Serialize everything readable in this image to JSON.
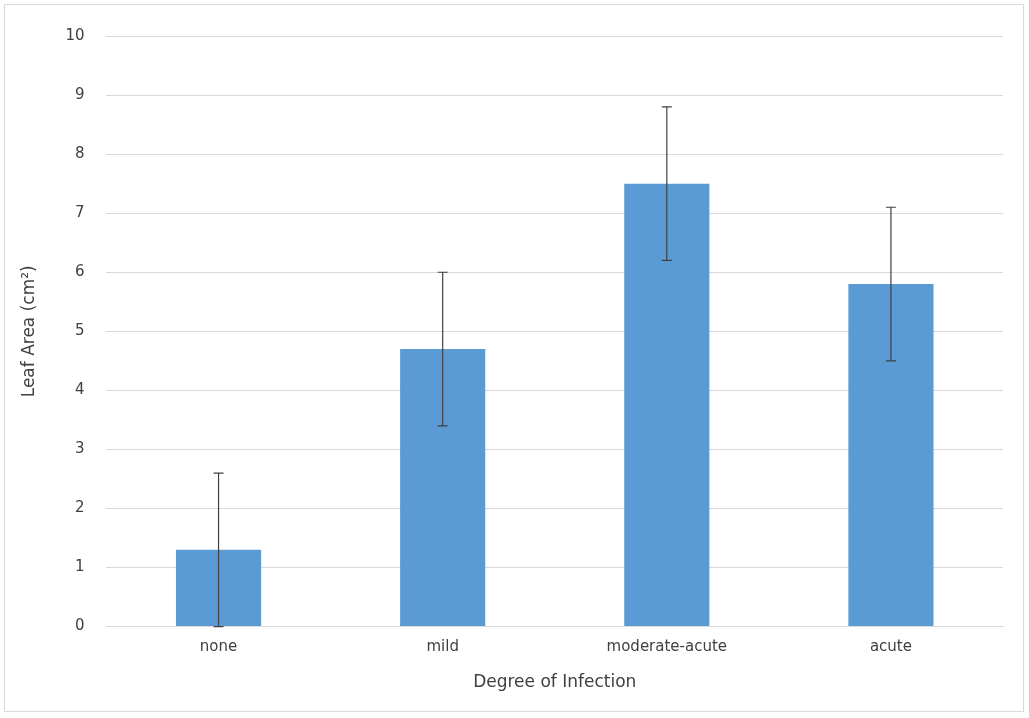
{
  "chart_data": {
    "type": "bar",
    "xlabel": "Degree of Infection",
    "ylabel": "Leaf Area (cm²)",
    "categories": [
      "none",
      "mild",
      "moderate-acute",
      "acute"
    ],
    "values": [
      1.3,
      4.7,
      7.5,
      5.8
    ],
    "errors": [
      1.3,
      1.3,
      1.3,
      1.3
    ],
    "color": "#5b9bd5",
    "ylim": [
      0,
      10
    ],
    "yticks": [
      0,
      1,
      2,
      3,
      4,
      5,
      6,
      7,
      8,
      9,
      10
    ],
    "grid": "y",
    "legend": false
  }
}
